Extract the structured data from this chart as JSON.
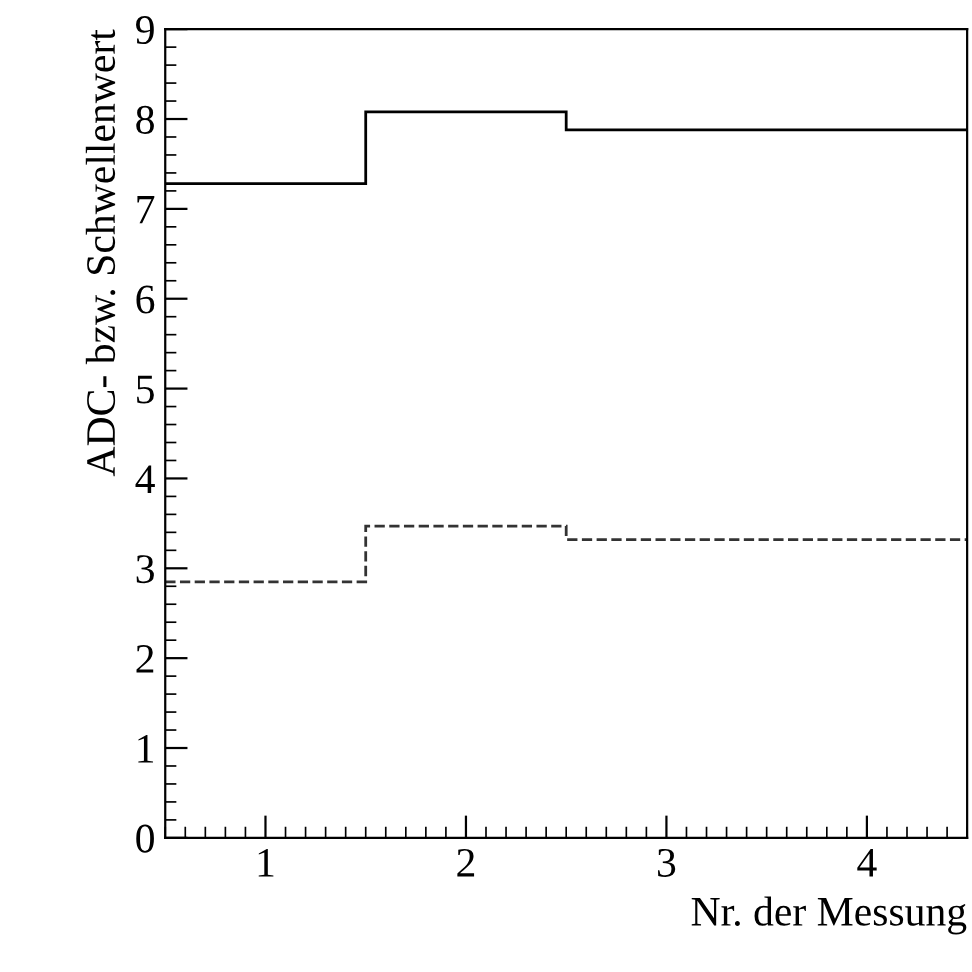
{
  "chart_data": {
    "type": "histogram",
    "xlabel": "Nr. der Messung",
    "ylabel": "ADC- bzw. Schwellenwert",
    "bins": [
      0.5,
      1.5,
      2.5,
      3.5,
      4.5
    ],
    "grid": false,
    "series": [
      {
        "color": "#000000",
        "line_style": "solid",
        "values": [
          7.28,
          8.08,
          7.88,
          7.88
        ]
      },
      {
        "color": "#333333",
        "line_style": "dashed",
        "values": [
          2.85,
          3.47,
          3.32,
          3.32
        ]
      }
    ],
    "xlim": [
      0.5,
      4.5
    ],
    "xticks": [
      1,
      2,
      3,
      4
    ],
    "ylim": [
      0,
      9
    ],
    "yticks": [
      0,
      1,
      2,
      3,
      4,
      5,
      6,
      7,
      8,
      9
    ]
  }
}
